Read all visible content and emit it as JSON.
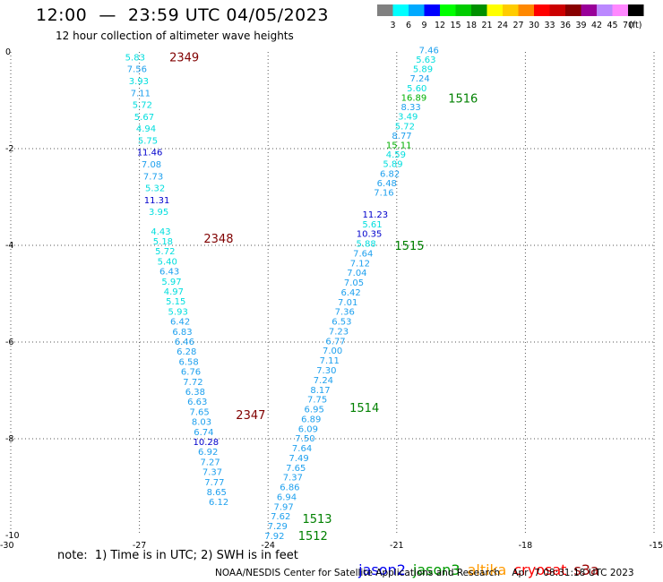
{
  "header": {
    "title": "12:00  —  23:59 UTC 04/05/2023",
    "subtitle": "12 hour collection of altimeter wave heights"
  },
  "color_scale": {
    "colors": [
      "#808080",
      "#00ffff",
      "#00aaff",
      "#0000ff",
      "#00ff00",
      "#00cc00",
      "#009000",
      "#ffff00",
      "#ffcc00",
      "#ff8800",
      "#ff0000",
      "#cc0000",
      "#880000",
      "#990099",
      "#bb88ff",
      "#ff88ff",
      "#000000"
    ],
    "labels": [
      "3",
      "6",
      "9",
      "12",
      "15",
      "18",
      "21",
      "24",
      "27",
      "30",
      "33",
      "36",
      "39",
      "42",
      "45",
      "70"
    ],
    "unit": "(ft)"
  },
  "chart_data": {
    "type": "scatter",
    "xlim": [
      -30,
      -15
    ],
    "ylim": [
      -10,
      0
    ],
    "x_ticks": [
      "-30",
      "-27",
      "-24",
      "-21",
      "-18",
      "-15"
    ],
    "y_ticks": [
      "0",
      "-2",
      "-4",
      "-6",
      "-8",
      "-10"
    ],
    "grid": true,
    "tracks": [
      {
        "x0": -27.1,
        "y0": -0.1,
        "x1": -26.55,
        "y1": -3.3,
        "values": [
          "5.83",
          "7.56",
          "3.93",
          "7.11",
          "5.72",
          "5.67",
          "4.94",
          "5.75",
          "11.46",
          "7.08",
          "7.73",
          "5.32",
          "11.31",
          "3.95"
        ]
      },
      {
        "x0": -26.5,
        "y0": -3.7,
        "x1": -25.15,
        "y1": -9.3,
        "values": [
          "4.43",
          "5.18",
          "5.72",
          "5.40",
          "6.43",
          "5.97",
          "4.97",
          "5.15",
          "5.93",
          "6.42",
          "6.83",
          "6.46",
          "6.28",
          "6.58",
          "6.76",
          "7.72",
          "6.38",
          "6.63",
          "7.65",
          "8.03",
          "6.74",
          "10.28",
          "6.92",
          "7.27",
          "7.37",
          "7.77",
          "8.65",
          "6.12"
        ]
      },
      {
        "x0": -20.25,
        "y0": 0.05,
        "x1": -21.3,
        "y1": -2.9,
        "values": [
          "7.46",
          "5.63",
          "5.89",
          "7.24",
          "5.60",
          "16.89",
          "8.33",
          "3.49",
          "5.72",
          "8.77",
          "15.11",
          "4.59",
          "5.89",
          "6.82",
          "6.48",
          "7.16"
        ]
      },
      {
        "x0": -21.5,
        "y0": -3.35,
        "x1": -23.85,
        "y1": -10.0,
        "values": [
          "11.23",
          "5.61",
          "10.35",
          "5.88",
          "7.64",
          "7.12",
          "7.04",
          "7.05",
          "6.42",
          "7.01",
          "7.36",
          "6.53",
          "7.23",
          "6.77",
          "7.00",
          "7.11",
          "7.30",
          "7.24",
          "8.17",
          "7.75",
          "6.95",
          "6.89",
          "6.09",
          "7.50",
          "7.64",
          "7.49",
          "7.65",
          "7.37",
          "6.86",
          "6.94",
          "7.97",
          "7.62",
          "7.29",
          "7.92"
        ]
      }
    ],
    "pass_labels": [
      {
        "text": "2349",
        "x": -26.3,
        "y": -0.1,
        "color": "#800000"
      },
      {
        "text": "2348",
        "x": -25.5,
        "y": -3.85,
        "color": "#800000"
      },
      {
        "text": "2347",
        "x": -24.75,
        "y": -7.5,
        "color": "#800000"
      },
      {
        "text": "1516",
        "x": -19.8,
        "y": -0.95,
        "color": "#008000"
      },
      {
        "text": "1515",
        "x": -21.05,
        "y": -4.0,
        "color": "#008000"
      },
      {
        "text": "1514",
        "x": -22.1,
        "y": -7.35,
        "color": "#008000"
      },
      {
        "text": "1513",
        "x": -23.2,
        "y": -9.65,
        "color": "#008000"
      },
      {
        "text": "1512",
        "x": -23.3,
        "y": -10.0,
        "color": "#008000"
      }
    ]
  },
  "notes": {
    "text": "note:  1) Time is in UTC; 2) SWH is in feet"
  },
  "satellites": [
    {
      "name": "jason2",
      "color": "#0000ee"
    },
    {
      "name": "jason3",
      "color": "#009900"
    },
    {
      "name": "altika",
      "color": "#ff9900"
    },
    {
      "name": "cryosat",
      "color": "#ff0000"
    },
    {
      "name": "s3a",
      "color": "#990000"
    }
  ],
  "footer": {
    "text": "NOAA/NESDIS Center for Satellite Applications and Research    Apr  7 08:31:18 UTC 2023"
  }
}
